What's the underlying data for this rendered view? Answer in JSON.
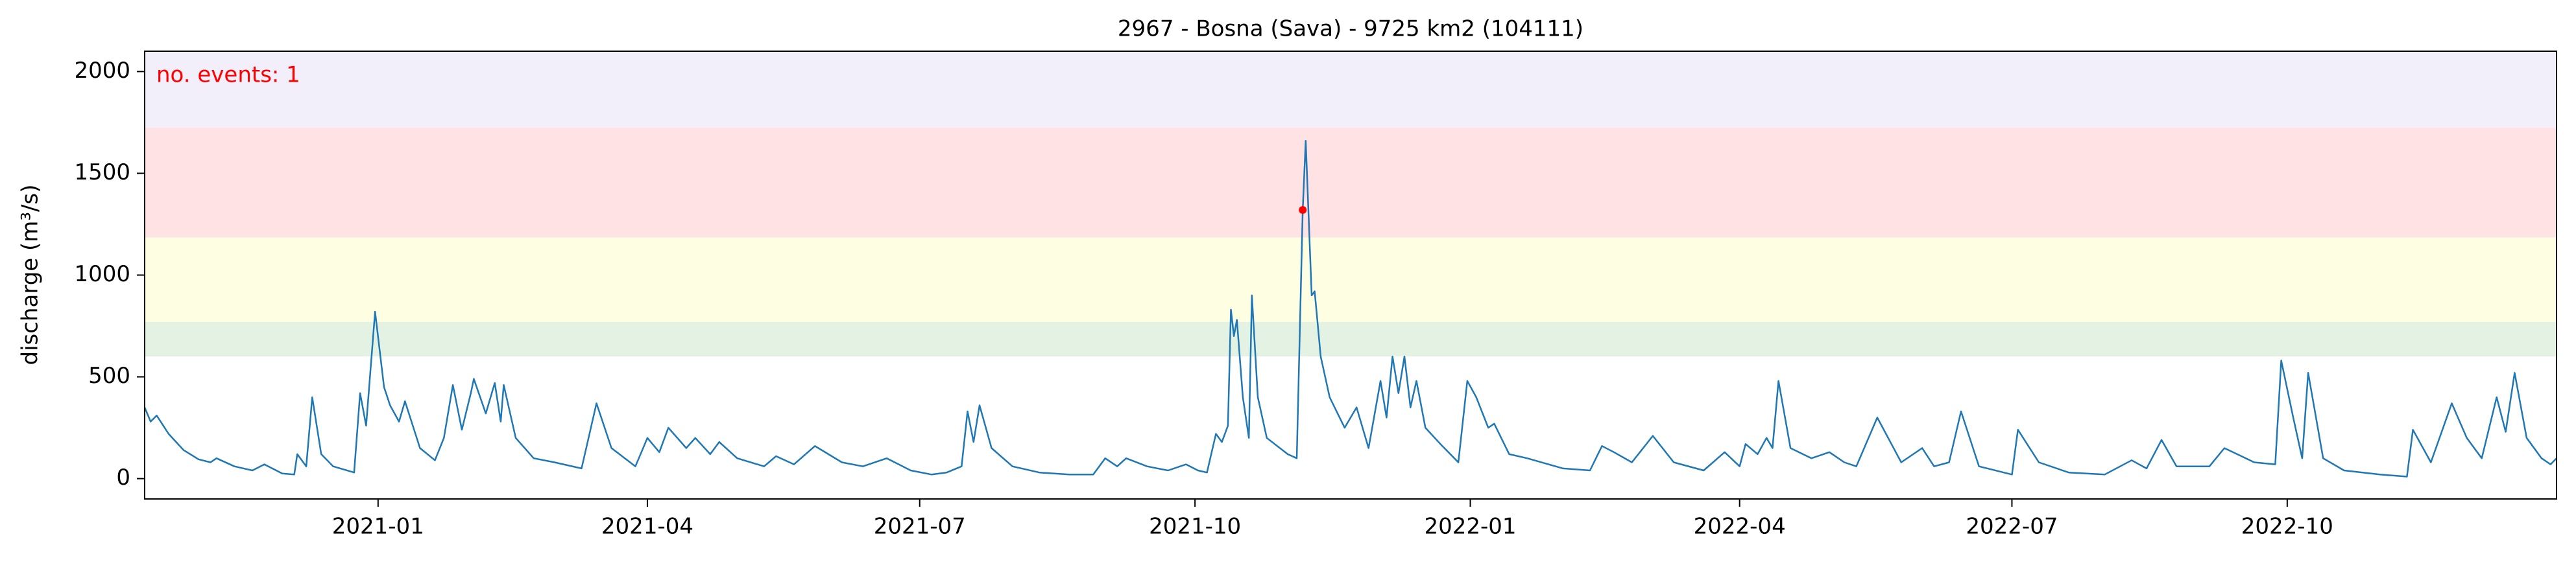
{
  "chart_data": {
    "type": "line",
    "title": "2967 - Bosna (Sava) - 9725 km2 (104111)",
    "y_label": "discharge (m³/s)",
    "annotation": "no. events: 1",
    "annotation_color": "#ff0000",
    "color": "#1f77b4",
    "xlim": [
      "2020-10-15",
      "2022-12-30"
    ],
    "ylim": [
      -100,
      2100
    ],
    "yticks": [
      0,
      500,
      1000,
      1500,
      2000
    ],
    "xticks": [
      {
        "value": "2021-01-01",
        "label": "2021-01"
      },
      {
        "value": "2021-04-01",
        "label": "2021-04"
      },
      {
        "value": "2021-07-01",
        "label": "2021-07"
      },
      {
        "value": "2021-10-01",
        "label": "2021-10"
      },
      {
        "value": "2022-01-01",
        "label": "2022-01"
      },
      {
        "value": "2022-04-01",
        "label": "2022-04"
      },
      {
        "value": "2022-07-01",
        "label": "2022-07"
      },
      {
        "value": "2022-10-01",
        "label": "2022-10"
      }
    ],
    "bands": [
      {
        "from": 600,
        "to": 770,
        "color": "#e4f2e4"
      },
      {
        "from": 770,
        "to": 1185,
        "color": "#fefee2"
      },
      {
        "from": 1185,
        "to": 1725,
        "color": "#fee2e4"
      },
      {
        "from": 1725,
        "to": 2100,
        "color": "#f3effa"
      }
    ],
    "events": {
      "x": [
        "2021-11-06"
      ],
      "values": [
        1320
      ],
      "color": "#ff0000"
    },
    "x": [
      "2020-10-15",
      "2020-10-17",
      "2020-10-19",
      "2020-10-23",
      "2020-10-28",
      "2020-11-02",
      "2020-11-06",
      "2020-11-08",
      "2020-11-14",
      "2020-11-20",
      "2020-11-24",
      "2020-11-30",
      "2020-12-04",
      "2020-12-05",
      "2020-12-08",
      "2020-12-10",
      "2020-12-13",
      "2020-12-17",
      "2020-12-24",
      "2020-12-26",
      "2020-12-28",
      "2020-12-31",
      "2021-01-03",
      "2021-01-05",
      "2021-01-08",
      "2021-01-10",
      "2021-01-15",
      "2021-01-20",
      "2021-01-23",
      "2021-01-26",
      "2021-01-29",
      "2021-02-01",
      "2021-02-02",
      "2021-02-06",
      "2021-02-09",
      "2021-02-11",
      "2021-02-12",
      "2021-02-16",
      "2021-02-22",
      "2021-03-01",
      "2021-03-10",
      "2021-03-15",
      "2021-03-20",
      "2021-03-28",
      "2021-04-01",
      "2021-04-05",
      "2021-04-08",
      "2021-04-14",
      "2021-04-17",
      "2021-04-22",
      "2021-04-25",
      "2021-05-01",
      "2021-05-10",
      "2021-05-14",
      "2021-05-20",
      "2021-05-27",
      "2021-06-05",
      "2021-06-12",
      "2021-06-20",
      "2021-06-28",
      "2021-07-05",
      "2021-07-10",
      "2021-07-15",
      "2021-07-17",
      "2021-07-19",
      "2021-07-21",
      "2021-07-25",
      "2021-08-01",
      "2021-08-10",
      "2021-08-20",
      "2021-08-28",
      "2021-09-01",
      "2021-09-05",
      "2021-09-08",
      "2021-09-15",
      "2021-09-22",
      "2021-09-28",
      "2021-10-02",
      "2021-10-05",
      "2021-10-08",
      "2021-10-10",
      "2021-10-12",
      "2021-10-13",
      "2021-10-14",
      "2021-10-15",
      "2021-10-17",
      "2021-10-19",
      "2021-10-20",
      "2021-10-22",
      "2021-10-25",
      "2021-11-01",
      "2021-11-04",
      "2021-11-06",
      "2021-11-07",
      "2021-11-09",
      "2021-11-10",
      "2021-11-12",
      "2021-11-15",
      "2021-11-20",
      "2021-11-24",
      "2021-11-28",
      "2021-12-02",
      "2021-12-04",
      "2021-12-06",
      "2021-12-08",
      "2021-12-10",
      "2021-12-12",
      "2021-12-14",
      "2021-12-17",
      "2021-12-22",
      "2021-12-28",
      "2021-12-31",
      "2022-01-03",
      "2022-01-07",
      "2022-01-09",
      "2022-01-14",
      "2022-01-20",
      "2022-02-01",
      "2022-02-10",
      "2022-02-14",
      "2022-02-18",
      "2022-02-24",
      "2022-03-03",
      "2022-03-10",
      "2022-03-20",
      "2022-03-27",
      "2022-04-01",
      "2022-04-03",
      "2022-04-07",
      "2022-04-10",
      "2022-04-12",
      "2022-04-14",
      "2022-04-18",
      "2022-04-25",
      "2022-05-01",
      "2022-05-06",
      "2022-05-10",
      "2022-05-17",
      "2022-05-25",
      "2022-06-01",
      "2022-06-05",
      "2022-06-10",
      "2022-06-14",
      "2022-06-20",
      "2022-07-01",
      "2022-07-03",
      "2022-07-10",
      "2022-07-20",
      "2022-08-01",
      "2022-08-10",
      "2022-08-15",
      "2022-08-20",
      "2022-08-25",
      "2022-09-05",
      "2022-09-10",
      "2022-09-20",
      "2022-09-27",
      "2022-09-29",
      "2022-10-03",
      "2022-10-06",
      "2022-10-08",
      "2022-10-13",
      "2022-10-20",
      "2022-11-01",
      "2022-11-10",
      "2022-11-12",
      "2022-11-18",
      "2022-11-25",
      "2022-11-30",
      "2022-12-05",
      "2022-12-10",
      "2022-12-13",
      "2022-12-16",
      "2022-12-20",
      "2022-12-25",
      "2022-12-28",
      "2022-12-30"
    ],
    "values": [
      350,
      280,
      310,
      220,
      140,
      95,
      80,
      100,
      60,
      40,
      70,
      25,
      20,
      120,
      60,
      400,
      120,
      60,
      30,
      420,
      260,
      820,
      450,
      360,
      280,
      380,
      150,
      90,
      200,
      460,
      240,
      420,
      490,
      320,
      470,
      280,
      460,
      200,
      100,
      80,
      50,
      370,
      150,
      60,
      200,
      130,
      250,
      150,
      200,
      120,
      180,
      100,
      60,
      110,
      70,
      160,
      80,
      60,
      100,
      40,
      20,
      30,
      60,
      330,
      180,
      360,
      150,
      60,
      30,
      20,
      20,
      100,
      60,
      100,
      60,
      40,
      70,
      40,
      30,
      220,
      180,
      260,
      830,
      700,
      780,
      400,
      200,
      900,
      400,
      200,
      120,
      100,
      1320,
      1660,
      900,
      920,
      600,
      400,
      250,
      350,
      150,
      480,
      300,
      600,
      420,
      600,
      350,
      480,
      250,
      170,
      80,
      480,
      400,
      250,
      270,
      120,
      100,
      50,
      40,
      160,
      130,
      80,
      210,
      80,
      40,
      130,
      60,
      170,
      120,
      200,
      150,
      480,
      150,
      100,
      130,
      80,
      60,
      300,
      80,
      150,
      60,
      80,
      330,
      60,
      20,
      240,
      80,
      30,
      20,
      90,
      50,
      190,
      60,
      60,
      150,
      80,
      70,
      580,
      300,
      100,
      520,
      100,
      40,
      20,
      10,
      240,
      80,
      370,
      200,
      100,
      400,
      230,
      520,
      200,
      100,
      70,
      100
    ]
  }
}
